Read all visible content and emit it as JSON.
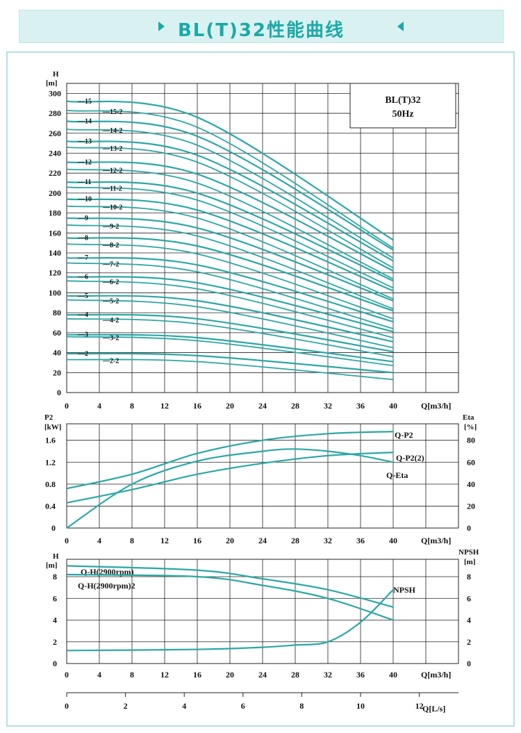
{
  "header": {
    "title": "BL(T)32性能曲线"
  },
  "colors": {
    "curve": "#2aa7a5",
    "grid": "#222222",
    "header_bg": "#d9f1f1",
    "accent": "#1aa9a7"
  },
  "chart_data": [
    {
      "type": "line",
      "ylabel": "H",
      "yunit": "[m]",
      "xlabel": "Q[m3/h]",
      "xticks": [
        0,
        4,
        8,
        12,
        16,
        20,
        24,
        28,
        32,
        36,
        40
      ],
      "yticks": [
        0,
        20,
        40,
        60,
        80,
        100,
        120,
        140,
        160,
        180,
        200,
        220,
        240,
        260,
        280,
        300
      ],
      "xlim": [
        0,
        48
      ],
      "ylim": [
        0,
        310
      ],
      "legend_box": [
        "BL(T)32",
        "50Hz"
      ],
      "stage_labels": [
        "15",
        "14",
        "13",
        "12",
        "11",
        "10",
        "9",
        "8",
        "7",
        "6",
        "5",
        "4",
        "3",
        "2"
      ],
      "stage_labels_2": [
        "15-2",
        "14-2",
        "13-2",
        "12-2",
        "11-2",
        "10-2",
        "9-2",
        "8-2",
        "7-2",
        "6-2",
        "5-2",
        "4-2",
        "3-2",
        "2-2"
      ],
      "series": [
        {
          "name": "15",
          "x": [
            0,
            16,
            40
          ],
          "y": [
            292,
            276,
            153
          ]
        },
        {
          "name": "15-2",
          "x": [
            0,
            16,
            40
          ],
          "y": [
            283,
            266,
            145
          ]
        },
        {
          "name": "14",
          "x": [
            0,
            16,
            40
          ],
          "y": [
            272,
            257,
            143
          ]
        },
        {
          "name": "14-2",
          "x": [
            0,
            16,
            40
          ],
          "y": [
            264,
            248,
            135
          ]
        },
        {
          "name": "13",
          "x": [
            0,
            16,
            40
          ],
          "y": [
            252,
            238,
            132
          ]
        },
        {
          "name": "13-2",
          "x": [
            0,
            16,
            40
          ],
          "y": [
            246,
            231,
            125
          ]
        },
        {
          "name": "12",
          "x": [
            0,
            16,
            40
          ],
          "y": [
            231,
            219,
            122
          ]
        },
        {
          "name": "12-2",
          "x": [
            0,
            16,
            40
          ],
          "y": [
            224,
            210,
            114
          ]
        },
        {
          "name": "11",
          "x": [
            0,
            16,
            40
          ],
          "y": [
            211,
            200,
            112
          ]
        },
        {
          "name": "11-2",
          "x": [
            0,
            16,
            40
          ],
          "y": [
            206,
            193,
            105
          ]
        },
        {
          "name": "10",
          "x": [
            0,
            16,
            40
          ],
          "y": [
            194,
            183,
            102
          ]
        },
        {
          "name": "10-2",
          "x": [
            0,
            16,
            40
          ],
          "y": [
            187,
            175,
            94
          ]
        },
        {
          "name": "9",
          "x": [
            0,
            16,
            40
          ],
          "y": [
            175,
            165,
            92
          ]
        },
        {
          "name": "9-2",
          "x": [
            0,
            16,
            40
          ],
          "y": [
            168,
            157,
            84
          ]
        },
        {
          "name": "8",
          "x": [
            0,
            16,
            40
          ],
          "y": [
            155,
            147,
            82
          ]
        },
        {
          "name": "8-2",
          "x": [
            0,
            16,
            40
          ],
          "y": [
            149,
            139,
            74
          ]
        },
        {
          "name": "7",
          "x": [
            0,
            16,
            40
          ],
          "y": [
            135,
            128,
            71
          ]
        },
        {
          "name": "7-2",
          "x": [
            0,
            16,
            40
          ],
          "y": [
            130,
            121,
            64
          ]
        },
        {
          "name": "6",
          "x": [
            0,
            16,
            40
          ],
          "y": [
            116,
            110,
            61
          ]
        },
        {
          "name": "6-2",
          "x": [
            0,
            16,
            40
          ],
          "y": [
            112,
            104,
            55
          ]
        },
        {
          "name": "5",
          "x": [
            0,
            16,
            40
          ],
          "y": [
            97,
            92,
            51
          ]
        },
        {
          "name": "5-2",
          "x": [
            0,
            16,
            40
          ],
          "y": [
            93,
            86,
            45
          ]
        },
        {
          "name": "4",
          "x": [
            0,
            16,
            40
          ],
          "y": [
            78,
            74,
            41
          ]
        },
        {
          "name": "4-2",
          "x": [
            0,
            16,
            40
          ],
          "y": [
            74,
            69,
            36
          ]
        },
        {
          "name": "3",
          "x": [
            0,
            16,
            40
          ],
          "y": [
            58,
            55,
            31
          ]
        },
        {
          "name": "3-2",
          "x": [
            0,
            16,
            40
          ],
          "y": [
            56,
            52,
            27
          ]
        },
        {
          "name": "2",
          "x": [
            0,
            16,
            40
          ],
          "y": [
            39,
            37,
            20
          ]
        },
        {
          "name": "2-2",
          "x": [
            0,
            16,
            40
          ],
          "y": [
            33,
            31,
            13
          ]
        }
      ]
    },
    {
      "type": "line",
      "ylabel": "P2",
      "yunit": "[kW]",
      "ylabel2": "Eta",
      "yunit2": "[%]",
      "xlabel": "Q[m3/h]",
      "xticks": [
        0,
        4,
        8,
        12,
        16,
        20,
        24,
        28,
        32,
        36,
        40
      ],
      "yticks": [
        0,
        0.4,
        0.8,
        1.2,
        1.6
      ],
      "yticks_labels": [
        "0",
        "0.4",
        "0.8",
        "1.2",
        "1.6"
      ],
      "yticks2": [
        0,
        20,
        40,
        60,
        80
      ],
      "xlim": [
        0,
        48
      ],
      "ylim": [
        0,
        1.9
      ],
      "ylim2": [
        0,
        95
      ],
      "series": [
        {
          "name": "Q-P2",
          "axis": "left",
          "x": [
            0,
            8,
            16,
            24,
            32,
            40
          ],
          "y": [
            0.72,
            0.98,
            1.36,
            1.6,
            1.72,
            1.76
          ]
        },
        {
          "name": "Q-P2(2)",
          "axis": "left",
          "x": [
            0,
            8,
            16,
            24,
            32,
            40
          ],
          "y": [
            0.46,
            0.7,
            0.98,
            1.18,
            1.32,
            1.38
          ]
        },
        {
          "name": "Q-Eta",
          "axis": "right",
          "x": [
            0,
            8,
            16,
            24,
            28,
            32,
            36,
            40
          ],
          "y": [
            0,
            40,
            61,
            70,
            72,
            70,
            66,
            60
          ]
        }
      ]
    },
    {
      "type": "line",
      "ylabel": "H",
      "yunit": "[m]",
      "ylabel2": "NPSH",
      "yunit2": "[m]",
      "xlabel": "Q[m3/h]",
      "x2label": "Q[L/s]",
      "xticks": [
        0,
        4,
        8,
        12,
        16,
        20,
        24,
        28,
        32,
        36,
        40
      ],
      "yticks": [
        0,
        2,
        4,
        6,
        8
      ],
      "yticks2": [
        0,
        2,
        4,
        6,
        8
      ],
      "x2ticks": [
        0,
        2,
        4,
        6,
        8,
        10,
        12
      ],
      "xlim": [
        0,
        48
      ],
      "ylim": [
        0,
        9.6
      ],
      "ylim2": [
        0,
        9.6
      ],
      "series": [
        {
          "name": "Q-H(2900rpm)",
          "axis": "left",
          "x": [
            0,
            16,
            24,
            32,
            40
          ],
          "y": [
            9.0,
            8.6,
            7.8,
            6.8,
            5.2
          ]
        },
        {
          "name": "Q-H(2900rpm)2",
          "axis": "left",
          "x": [
            0,
            16,
            24,
            32,
            40
          ],
          "y": [
            8.2,
            8.0,
            7.2,
            6.0,
            4.0
          ]
        },
        {
          "name": "NPSH",
          "axis": "right",
          "x": [
            0,
            16,
            24,
            28,
            32,
            36,
            40
          ],
          "y": [
            1.2,
            1.3,
            1.5,
            1.7,
            2.0,
            3.8,
            6.8
          ]
        }
      ]
    }
  ]
}
